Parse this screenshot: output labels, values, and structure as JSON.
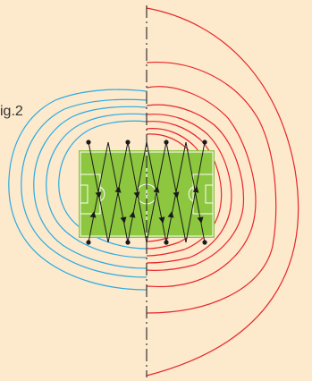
{
  "figure": {
    "label": "ig.2"
  },
  "colors": {
    "background": "#fde9cc",
    "pitch": "#8dc63f",
    "pitch_lines": "#ffffff",
    "left_contours": "#29abe2",
    "right_contours": "#e8252a",
    "axis": "#333333",
    "network": "#1a1a1a"
  }
}
